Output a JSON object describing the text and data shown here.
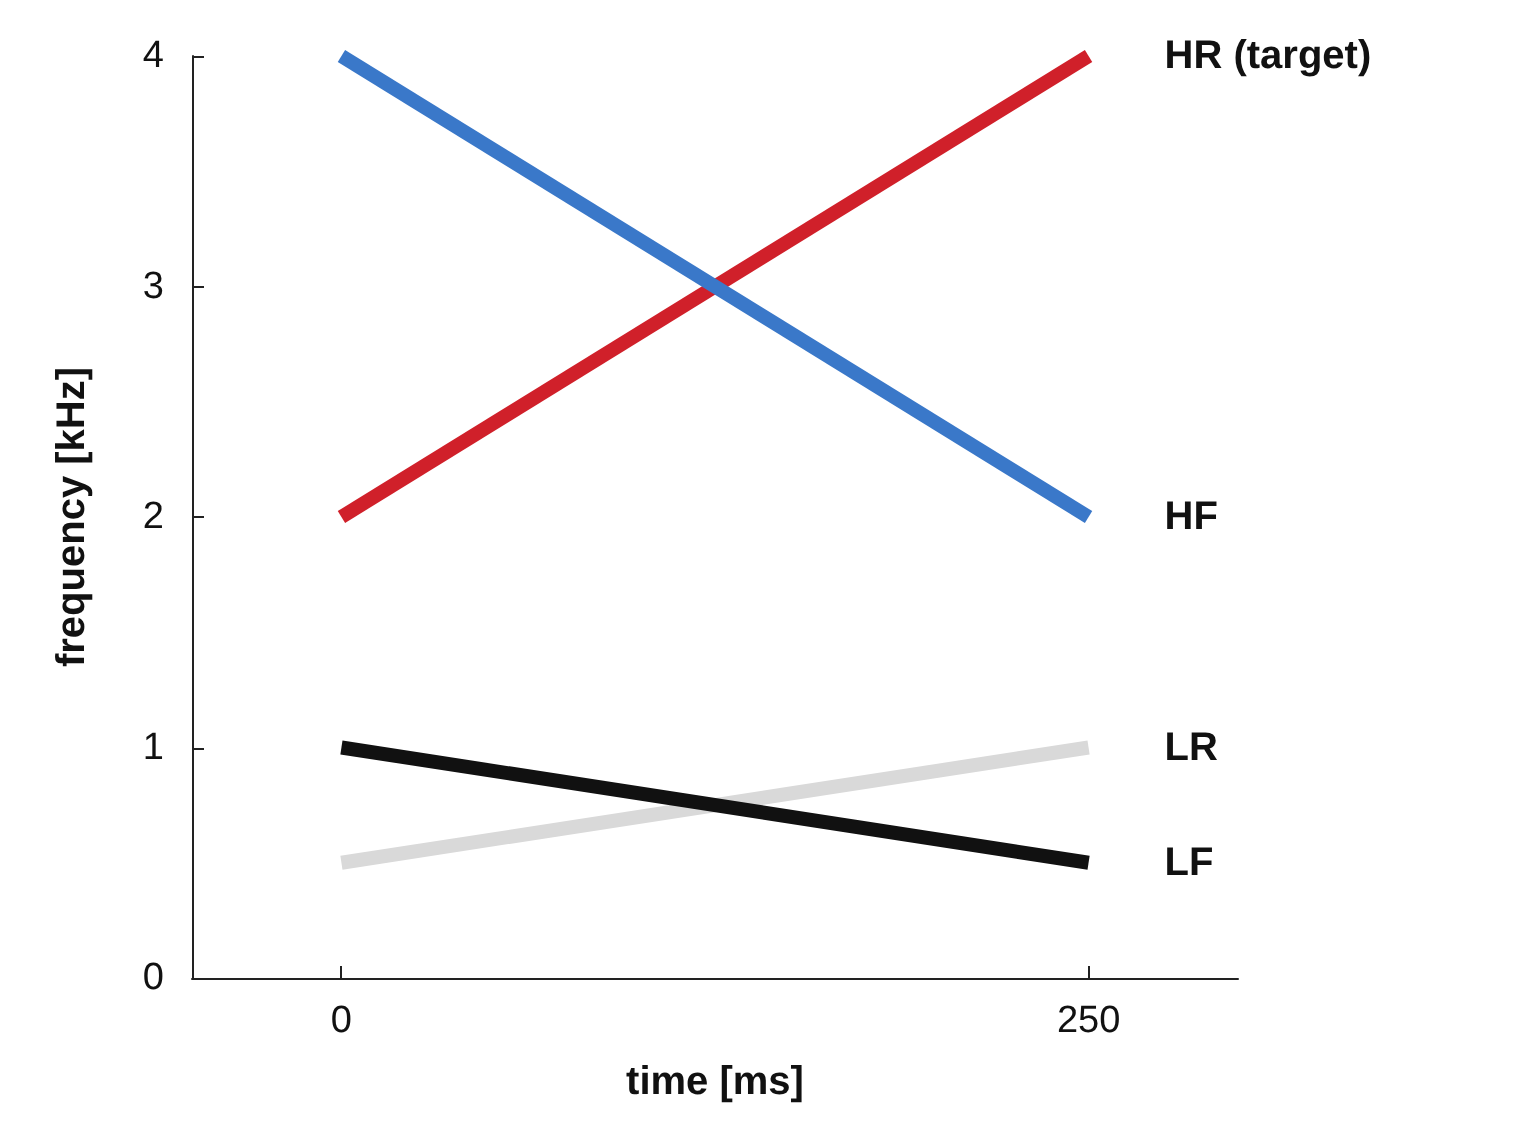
{
  "chart_data": {
    "type": "line",
    "xlabel": "time [ms]",
    "ylabel": "frequency [kHz]",
    "x": [
      0,
      250
    ],
    "xlim": [
      -50,
      300
    ],
    "xticks": [
      0,
      250
    ],
    "ylim": [
      0,
      4
    ],
    "yticks": [
      0,
      1,
      2,
      3,
      4
    ],
    "grid": false,
    "marker": "none",
    "line_style": "solid",
    "series": [
      {
        "name": "HR (target)",
        "color": "#d0202a",
        "values": [
          2,
          4
        ]
      },
      {
        "name": "HF",
        "color": "#3a78c9",
        "values": [
          4,
          2
        ]
      },
      {
        "name": "LR",
        "color": "#d9d9d9",
        "values": [
          0.5,
          1
        ]
      },
      {
        "name": "LF",
        "color": "#111111",
        "values": [
          1,
          0.5
        ]
      }
    ]
  }
}
